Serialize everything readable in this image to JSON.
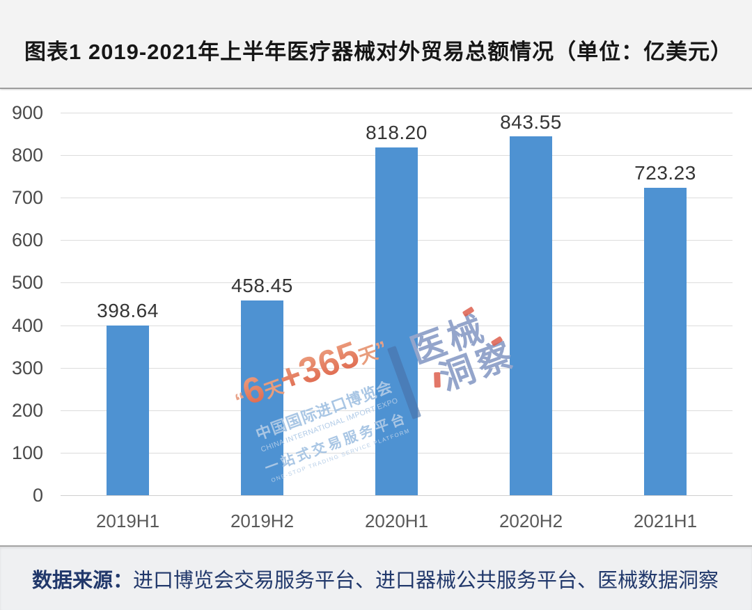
{
  "header": {
    "title": "图表1  2019-2021年上半年医疗器械对外贸易总额情况（单位：亿美元）"
  },
  "chart_data": {
    "type": "bar",
    "title": "2019-2021年上半年医疗器械对外贸易总额情况",
    "unit": "亿美元",
    "categories": [
      "2019H1",
      "2019H2",
      "2020H1",
      "2020H2",
      "2021H1"
    ],
    "values": [
      398.64,
      458.45,
      818.2,
      843.55,
      723.23
    ],
    "value_labels": [
      "398.64",
      "458.45",
      "818.20",
      "843.55",
      "723.23"
    ],
    "ylim": [
      0,
      900
    ],
    "ytick_interval": 100,
    "ytick_labels": [
      "0",
      "100",
      "200",
      "300",
      "400",
      "500",
      "600",
      "700",
      "800",
      "900"
    ],
    "grid": true,
    "legend": false,
    "bar_color": "#4E92D2",
    "gridline_color": "#dcdcdc"
  },
  "watermark": {
    "slogan_quote_open": "“",
    "slogan_num1": "6",
    "slogan_tian1": "天",
    "slogan_num2": "+365",
    "slogan_tian2": "天",
    "slogan_quote_close": "”",
    "expo_cn": "中国国际进口博览会",
    "expo_en": "CHINA INTERNATIONAL IMPORT EXPO",
    "platform_cn": "一站式交易服务平台",
    "platform_en": "ONE-STOP TRADING SERVICE PLATFORM",
    "brand_line1": "医械",
    "brand_line2": "洞察",
    "colors": {
      "expo_blue": "#a9c6e4",
      "slogan_orange": "#e4795c",
      "brand_blue_gray": "#94a5cb",
      "accent_red": "#dd5f4e",
      "slash_blue": "#4871a8"
    }
  },
  "footer": {
    "source_label": "数据来源：",
    "source_text": "进口博览会交易服务平台、进口器械公共服务平台、医械数据洞察"
  }
}
